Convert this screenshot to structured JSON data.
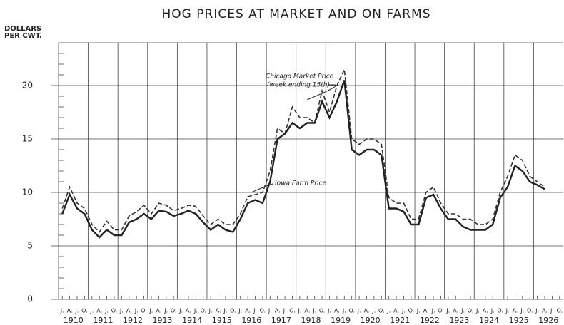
{
  "chart_data": {
    "type": "line",
    "title": "HOG PRICES AT MARKET AND ON FARMS",
    "y_label": [
      "DOLLARS",
      "PER CWT."
    ],
    "annotations": [
      "Chicago Market Price",
      "(week ending 15th)",
      "Iowa Farm Price"
    ],
    "categories": [
      "J.",
      "A.",
      "J.",
      "O.",
      "J.",
      "A.",
      "J.",
      "O.",
      "J.",
      "A.",
      "J.",
      "O.",
      "J.",
      "A.",
      "J.",
      "O.",
      "J.",
      "A.",
      "J.",
      "O.",
      "J.",
      "A.",
      "J.",
      "O.",
      "J.",
      "A.",
      "J.",
      "O.",
      "J.",
      "A.",
      "J.",
      "O.",
      "J.",
      "A.",
      "J.",
      "O.",
      "J.",
      "A.",
      "J.",
      "O.",
      "J.",
      "A.",
      "J.",
      "O.",
      "J.",
      "A.",
      "J.",
      "O.",
      "J.",
      "A.",
      "J.",
      "O.",
      "J.",
      "A.",
      "J.",
      "O.",
      "J.",
      "A.",
      "J.",
      "O.",
      "J.",
      "A.",
      "J.",
      "O.",
      "J.",
      "A.",
      "J.",
      "O."
    ],
    "years": [
      "1910",
      "1911",
      "1912",
      "1913",
      "1914",
      "1915",
      "1916",
      "1917",
      "1918",
      "1919",
      "1920",
      "1921",
      "1922",
      "1923",
      "1924",
      "1925",
      "1926"
    ],
    "series": [
      {
        "name": "Chicago Market Price",
        "color": "#333",
        "dashed": true,
        "values": [
          8.5,
          10.5,
          9,
          8.5,
          7,
          6.3,
          7.3,
          6.5,
          6.5,
          7.8,
          8.2,
          8.8,
          8,
          9,
          8.8,
          8.3,
          8.5,
          8.8,
          8.7,
          7.8,
          7,
          7.5,
          7,
          7,
          8,
          9.6,
          9.8,
          10,
          12,
          16,
          15.5,
          18,
          17,
          17,
          16.5,
          19.5,
          17.5,
          20,
          21.5,
          15,
          14.5,
          15,
          15,
          14.5,
          9.5,
          9,
          9,
          7.5,
          7.5,
          10,
          10.5,
          9,
          8,
          8,
          7.5,
          7.5,
          7,
          7,
          7.5,
          10,
          11.5,
          13.5,
          13,
          11.5,
          11,
          10.5,
          null,
          null
        ]
      },
      {
        "name": "Iowa Farm Price",
        "color": "#222",
        "dashed": false,
        "values": [
          8,
          9.8,
          8.5,
          8,
          6.5,
          5.8,
          6.5,
          6,
          6,
          7.2,
          7.5,
          8,
          7.5,
          8.3,
          8.2,
          7.8,
          8,
          8.3,
          8,
          7.2,
          6.5,
          7,
          6.5,
          6.3,
          7.5,
          9,
          9.3,
          9,
          11,
          15,
          15.5,
          16.5,
          16,
          16.5,
          16.5,
          18.5,
          17,
          18.5,
          20.5,
          14,
          13.5,
          14,
          14,
          13.5,
          8.5,
          8.5,
          8.2,
          7,
          7,
          9.5,
          9.8,
          8.5,
          7.5,
          7.5,
          6.8,
          6.5,
          6.5,
          6.5,
          7,
          9.5,
          10.5,
          12.5,
          12,
          11,
          10.7,
          10.3,
          null,
          null
        ]
      }
    ],
    "ylim": [
      0,
      24
    ],
    "yticks": [
      0,
      5,
      10,
      15,
      20
    ],
    "yminor": [
      1,
      2,
      3,
      4,
      6,
      7,
      8,
      9,
      11,
      12,
      13,
      14,
      16,
      17,
      18,
      19,
      21,
      22,
      23
    ],
    "grid": true
  }
}
